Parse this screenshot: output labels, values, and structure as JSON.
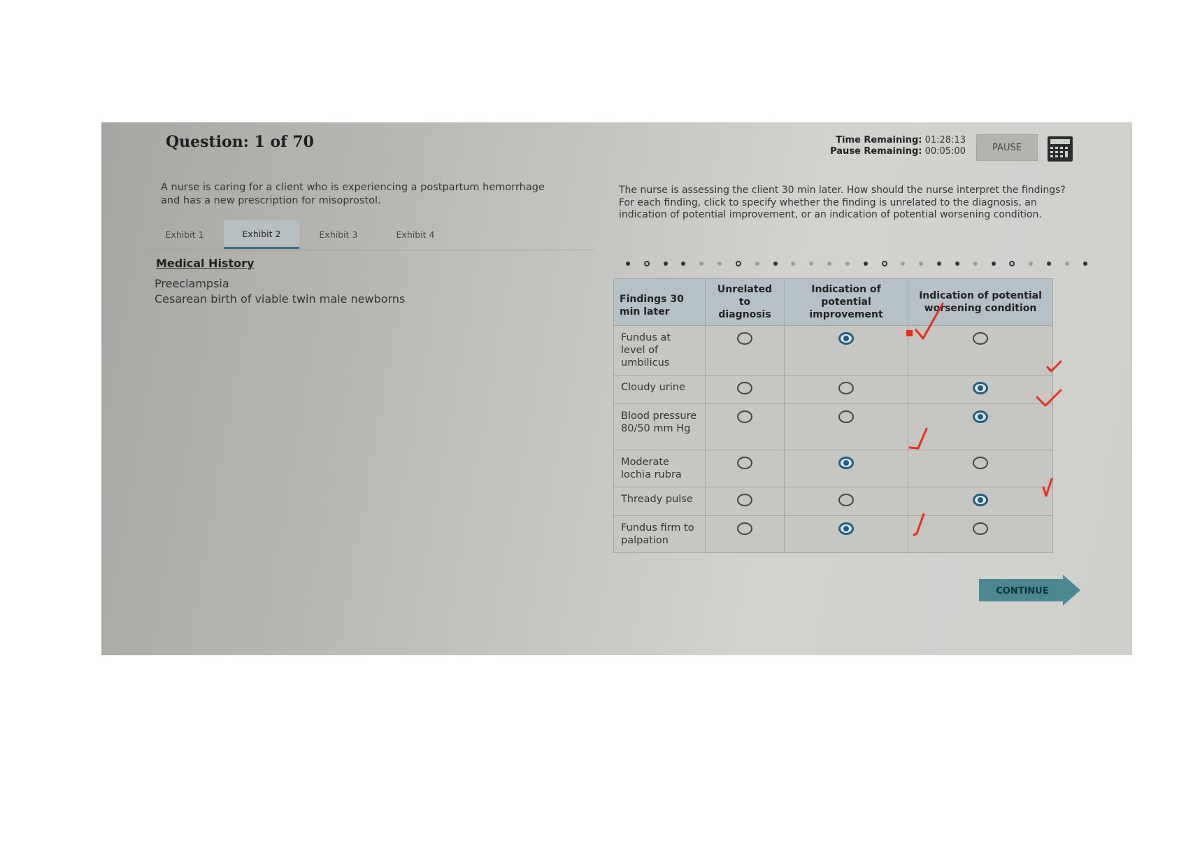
{
  "header": {
    "question_label": "Question: 1 of 70",
    "time_remaining_label": "Time Remaining:",
    "time_remaining": "01:28:13",
    "pause_remaining_label": "Pause Remaining:",
    "pause_remaining": "00:05:00",
    "pause_button": "PAUSE",
    "calculator_icon": "calculator-icon"
  },
  "left": {
    "prompt": "A nurse is caring for a client who is experiencing a postpartum hemorrhage and has a new prescription for misoprostol.",
    "tabs": [
      {
        "label": "Exhibit 1",
        "active": false
      },
      {
        "label": "Exhibit 2",
        "active": true
      },
      {
        "label": "Exhibit 3",
        "active": false
      },
      {
        "label": "Exhibit 4",
        "active": false
      }
    ],
    "section_title": "Medical History",
    "history": [
      "Preeclampsia",
      "Cesarean birth of viable twin male newborns"
    ]
  },
  "right": {
    "prompt_line1": "The nurse is assessing the client 30 min later. How should the nurse interpret the findings?",
    "prompt_line2": "For each finding, click to specify whether the finding is unrelated to the diagnosis, an indication of potential improvement, or an indication of potential worsening condition.",
    "table": {
      "headers": [
        "Findings 30 min later",
        "Unrelated to diagnosis",
        "Indication of potential improvement",
        "Indication of potential worsening condition"
      ],
      "rows": [
        {
          "finding": "Fundus at level of umbilicus",
          "selected": 1
        },
        {
          "finding": "Cloudy urine",
          "selected": 2
        },
        {
          "finding": "Blood pressure 80/50 mm Hg",
          "selected": 2
        },
        {
          "finding": "Moderate lochia rubra",
          "selected": 1
        },
        {
          "finding": "Thready pulse",
          "selected": 2
        },
        {
          "finding": "Fundus firm to palpation",
          "selected": 1
        }
      ]
    },
    "continue_button": "CONTINUE"
  },
  "colors": {
    "accent": "#1f5d86",
    "continue": "#4a8790",
    "annotation": "#e8301c"
  }
}
